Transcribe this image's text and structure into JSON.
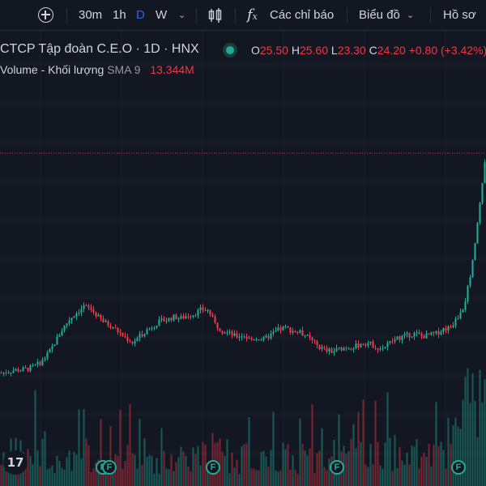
{
  "toolbar": {
    "add_symbol_icon": "plus-circle-icon",
    "intervals": [
      "30m",
      "1h",
      "D",
      "W"
    ],
    "active_interval": "D",
    "indicators_icon": "fx-icon",
    "indicators_label": "Các chỉ báo",
    "chart_type_icon": "candlestick-icon",
    "chart_label": "Biểu đồ",
    "profile_label": "Hồ sơ"
  },
  "legend": {
    "symbol_title": "CTCP Tập đoàn C.E.O · 1D · HNX",
    "status_color": "#22ab94",
    "open_label": "O",
    "open_value": "25.50",
    "high_label": "H",
    "high_value": "25.60",
    "low_label": "L",
    "low_value": "23.30",
    "close_label": "C",
    "close_value": "24.20",
    "change": "+0.80 (+3.42%)",
    "volume_label": "Volume - Khối lượng",
    "volume_sma": "SMA 9",
    "volume_value": "13.344M"
  },
  "colors": {
    "background": "#131722",
    "up": "#22ab94",
    "down": "#f23645",
    "grid": "#1e222d",
    "price_line": "#f23645"
  },
  "markers": {
    "logo_text": "17",
    "event_label": "F"
  },
  "chart_data": {
    "type": "candlestick",
    "last": {
      "open": 25.5,
      "high": 25.6,
      "low": 23.3,
      "close": 24.2
    },
    "close_series": [
      10.4,
      10.5,
      10.6,
      10.6,
      10.7,
      10.9,
      11.2,
      11.8,
      12.6,
      13.4,
      14.0,
      14.4,
      14.8,
      14.6,
      14.1,
      13.7,
      13.5,
      13.1,
      12.7,
      12.4,
      12.8,
      13.2,
      13.5,
      13.8,
      13.9,
      14.1,
      14.0,
      14.2,
      14.3,
      14.6,
      14.5,
      13.6,
      13.2,
      13.0,
      12.8,
      12.9,
      12.6,
      12.7,
      12.6,
      12.9,
      13.2,
      13.4,
      13.2,
      13.1,
      12.9,
      12.5,
      12.1,
      11.9,
      11.8,
      12.0,
      12.1,
      12.1,
      12.3,
      12.4,
      12.2,
      12.0,
      12.3,
      12.6,
      12.8,
      12.9,
      13.0,
      12.8,
      12.9,
      13.0,
      13.3,
      13.4,
      14.0,
      14.8,
      17.0,
      20.5,
      24.2
    ],
    "volume_sma": "SMA 9",
    "volume_last": "13.344M"
  }
}
